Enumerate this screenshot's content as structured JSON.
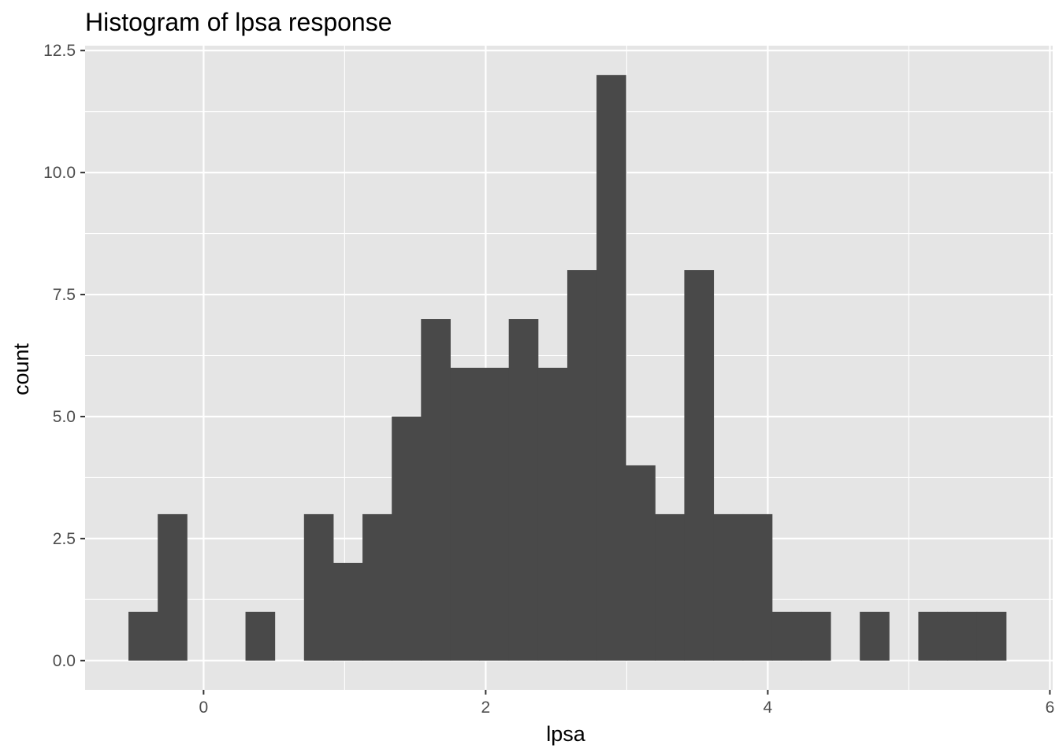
{
  "chart_data": {
    "type": "bar",
    "subtype": "histogram",
    "title": "Histogram of lpsa response",
    "xlabel": "lpsa",
    "ylabel": "count",
    "xlim": [
      -0.84,
      6.02
    ],
    "ylim": [
      -0.6,
      12.6
    ],
    "x_ticks": [
      0,
      2,
      4,
      6
    ],
    "x_tick_labels": [
      "0",
      "2",
      "4",
      "6"
    ],
    "y_ticks": [
      0,
      2.5,
      5,
      7.5,
      10,
      12.5
    ],
    "y_tick_labels": [
      "0.0",
      "2.5",
      "5.0",
      "7.5",
      "10.0",
      "12.5"
    ],
    "bin_width": 0.2074,
    "bins": [
      {
        "x0": -0.5325,
        "x1": -0.3251,
        "count": 1
      },
      {
        "x0": -0.3251,
        "x1": -0.1177,
        "count": 3
      },
      {
        "x0": -0.1177,
        "x1": 0.0897,
        "count": 0
      },
      {
        "x0": 0.0897,
        "x1": 0.2971,
        "count": 0
      },
      {
        "x0": 0.2971,
        "x1": 0.5045,
        "count": 1
      },
      {
        "x0": 0.5045,
        "x1": 0.7119,
        "count": 0
      },
      {
        "x0": 0.7119,
        "x1": 0.9193,
        "count": 3
      },
      {
        "x0": 0.9193,
        "x1": 1.1267,
        "count": 2
      },
      {
        "x0": 1.1267,
        "x1": 1.3341,
        "count": 3
      },
      {
        "x0": 1.3341,
        "x1": 1.5415,
        "count": 5
      },
      {
        "x0": 1.5415,
        "x1": 1.7489,
        "count": 7
      },
      {
        "x0": 1.7489,
        "x1": 1.9563,
        "count": 6
      },
      {
        "x0": 1.9563,
        "x1": 2.1637,
        "count": 6
      },
      {
        "x0": 2.1637,
        "x1": 2.3711,
        "count": 7
      },
      {
        "x0": 2.3711,
        "x1": 2.5785,
        "count": 6
      },
      {
        "x0": 2.5785,
        "x1": 2.7859,
        "count": 8
      },
      {
        "x0": 2.7859,
        "x1": 2.9933,
        "count": 12
      },
      {
        "x0": 2.9933,
        "x1": 3.2007,
        "count": 4
      },
      {
        "x0": 3.2007,
        "x1": 3.4081,
        "count": 3
      },
      {
        "x0": 3.4081,
        "x1": 3.6155,
        "count": 8
      },
      {
        "x0": 3.6155,
        "x1": 3.8229,
        "count": 3
      },
      {
        "x0": 3.8229,
        "x1": 4.0303,
        "count": 3
      },
      {
        "x0": 4.0303,
        "x1": 4.2377,
        "count": 1
      },
      {
        "x0": 4.2377,
        "x1": 4.4451,
        "count": 1
      },
      {
        "x0": 4.4451,
        "x1": 4.6525,
        "count": 0
      },
      {
        "x0": 4.6525,
        "x1": 4.8599,
        "count": 1
      },
      {
        "x0": 4.8599,
        "x1": 5.0673,
        "count": 0
      },
      {
        "x0": 5.0673,
        "x1": 5.2747,
        "count": 1
      },
      {
        "x0": 5.2747,
        "x1": 5.4821,
        "count": 1
      },
      {
        "x0": 5.4821,
        "x1": 5.6895,
        "count": 1
      }
    ],
    "grid": true,
    "legend": "none",
    "colors": {
      "panel_background": "#e5e5e5",
      "grid_line": "#ffffff",
      "bar_fill": "#494949",
      "tick_text": "#4d4d4d",
      "tick_mark": "#333333"
    }
  }
}
